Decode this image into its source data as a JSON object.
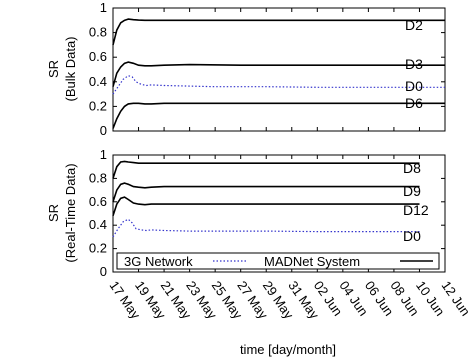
{
  "chart_data": [
    {
      "type": "line",
      "ylabel_lines": [
        "SR",
        "(Bulk Data)"
      ],
      "ylim": [
        0,
        1
      ],
      "yticks": [
        0,
        0.2,
        0.4,
        0.6,
        0.8,
        1
      ],
      "ytick_labels": [
        "0",
        "0.2",
        "0.4",
        "0.6",
        "0.8",
        "1"
      ],
      "xlim": [
        0,
        26
      ],
      "grid": false,
      "series": [
        {
          "name": "D2",
          "style": "solid",
          "color": "#000000",
          "x": [
            0,
            0.3,
            0.6,
            0.9,
            1.2,
            1.6,
            2,
            2.5,
            3,
            4,
            6,
            10,
            15,
            20,
            26
          ],
          "y": [
            0.7,
            0.82,
            0.88,
            0.9,
            0.91,
            0.905,
            0.902,
            0.9,
            0.9,
            0.9,
            0.9,
            0.9,
            0.9,
            0.9,
            0.9
          ]
        },
        {
          "name": "D3",
          "style": "solid",
          "color": "#000000",
          "x": [
            0,
            0.3,
            0.6,
            0.9,
            1.2,
            1.6,
            2,
            2.5,
            3,
            4,
            6,
            10,
            15,
            20,
            26
          ],
          "y": [
            0.36,
            0.47,
            0.52,
            0.55,
            0.56,
            0.55,
            0.535,
            0.53,
            0.53,
            0.535,
            0.54,
            0.535,
            0.535,
            0.535,
            0.535
          ]
        },
        {
          "name": "D0",
          "style": "dotted",
          "color": "#3333cc",
          "x": [
            0,
            0.4,
            0.8,
            1.2,
            1.5,
            1.8,
            2.2,
            2.6,
            3,
            4,
            6,
            8,
            12,
            16,
            20,
            26
          ],
          "y": [
            0.3,
            0.36,
            0.42,
            0.45,
            0.44,
            0.4,
            0.38,
            0.37,
            0.375,
            0.37,
            0.365,
            0.36,
            0.36,
            0.355,
            0.355,
            0.355
          ]
        },
        {
          "name": "D6",
          "style": "solid",
          "color": "#000000",
          "x": [
            0,
            0.3,
            0.6,
            0.9,
            1.2,
            1.6,
            2,
            2.5,
            3,
            4,
            6,
            10,
            15,
            20,
            26
          ],
          "y": [
            0.02,
            0.1,
            0.16,
            0.2,
            0.22,
            0.225,
            0.225,
            0.22,
            0.22,
            0.225,
            0.225,
            0.225,
            0.225,
            0.225,
            0.225
          ]
        }
      ]
    },
    {
      "type": "line",
      "ylabel_lines": [
        "SR",
        "(Real-Time Data)"
      ],
      "ylim": [
        0,
        1
      ],
      "yticks": [
        0,
        0.2,
        0.4,
        0.6,
        0.8,
        1
      ],
      "ytick_labels": [
        "0",
        "0.2",
        "0.4",
        "0.6",
        "0.8",
        "1"
      ],
      "xlim": [
        0,
        26
      ],
      "xlabel": "time [day/month]",
      "xticks": [
        0,
        2,
        4,
        6,
        8,
        10,
        12,
        14,
        16,
        18,
        20,
        22,
        24,
        26
      ],
      "xtick_labels": [
        "17 May",
        "19 May",
        "21 May",
        "23 May",
        "25 May",
        "27 May",
        "29 May",
        "31 May",
        "02 Jun",
        "04 Jun",
        "06 Jun",
        "08 Jun",
        "10 Jun",
        "12 Jun"
      ],
      "grid": false,
      "legend": {
        "placement": "bottom-center",
        "entries": [
          {
            "label": "3G Network",
            "style": "dotted",
            "color": "#3333cc"
          },
          {
            "label": "MADNet System",
            "style": "solid",
            "color": "#000000"
          }
        ]
      },
      "series": [
        {
          "name": "D8",
          "style": "solid",
          "color": "#000000",
          "x": [
            0,
            0.3,
            0.6,
            0.9,
            1.2,
            1.6,
            2,
            2.5,
            3,
            4,
            6,
            10,
            15,
            20,
            24
          ],
          "y": [
            0.8,
            0.9,
            0.94,
            0.945,
            0.94,
            0.935,
            0.93,
            0.93,
            0.93,
            0.93,
            0.93,
            0.93,
            0.93,
            0.93,
            0.93
          ]
        },
        {
          "name": "D9",
          "style": "solid",
          "color": "#000000",
          "x": [
            0,
            0.3,
            0.6,
            0.9,
            1.2,
            1.6,
            2,
            2.5,
            3,
            4,
            6,
            10,
            15,
            20,
            24
          ],
          "y": [
            0.6,
            0.7,
            0.75,
            0.76,
            0.75,
            0.73,
            0.725,
            0.72,
            0.725,
            0.73,
            0.73,
            0.73,
            0.73,
            0.73,
            0.73
          ]
        },
        {
          "name": "D12",
          "style": "solid",
          "color": "#000000",
          "x": [
            0,
            0.3,
            0.6,
            0.9,
            1.2,
            1.6,
            2,
            2.5,
            3,
            4,
            6,
            10,
            15,
            20,
            24
          ],
          "y": [
            0.48,
            0.58,
            0.63,
            0.64,
            0.62,
            0.59,
            0.58,
            0.575,
            0.58,
            0.58,
            0.58,
            0.58,
            0.58,
            0.58,
            0.58
          ]
        },
        {
          "name": "D0",
          "style": "dotted",
          "color": "#3333cc",
          "x": [
            0,
            0.4,
            0.8,
            1.2,
            1.5,
            1.8,
            2.2,
            2.6,
            3,
            4,
            6,
            8,
            12,
            16,
            20,
            24
          ],
          "y": [
            0.3,
            0.37,
            0.43,
            0.45,
            0.42,
            0.37,
            0.36,
            0.355,
            0.36,
            0.355,
            0.35,
            0.35,
            0.35,
            0.345,
            0.345,
            0.345
          ]
        }
      ]
    }
  ]
}
